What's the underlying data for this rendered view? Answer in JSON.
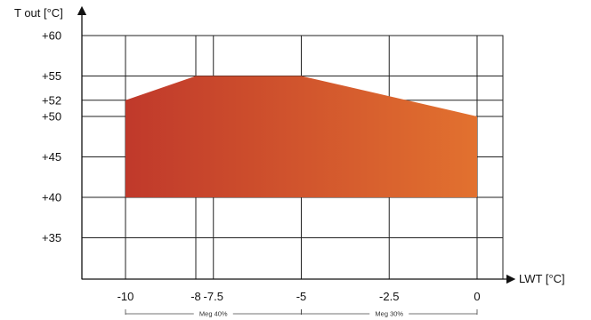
{
  "chart_data": {
    "type": "area",
    "title": "",
    "xlabel": "LWT [°C]",
    "ylabel": "T out [°C]",
    "xlim": [
      -10,
      0
    ],
    "ylim": [
      30,
      60
    ],
    "grid": true,
    "x_ticks": [
      -10,
      -8,
      -7.5,
      -5,
      -2.5,
      0
    ],
    "x_tick_labels": [
      "-10",
      "-8",
      "-7.5",
      "-5",
      "-2.5",
      "0"
    ],
    "y_ticks": [
      60,
      55,
      52,
      50,
      45,
      40,
      35
    ],
    "y_tick_labels": [
      "+60",
      "+55",
      "+52",
      "+50",
      "+45",
      "+40",
      "+35"
    ],
    "envelope": {
      "upper": [
        {
          "x": -10,
          "y": 52
        },
        {
          "x": -8,
          "y": 55
        },
        {
          "x": -5,
          "y": 55
        },
        {
          "x": 0,
          "y": 50
        }
      ],
      "lower": [
        {
          "x": -10,
          "y": 40
        },
        {
          "x": 0,
          "y": 40
        }
      ],
      "gradient_start": "#c0392b",
      "gradient_end": "#e2712f"
    },
    "ranges": [
      {
        "label": "Meg 40%",
        "x_start": -10,
        "x_end": -5
      },
      {
        "label": "Meg 30%",
        "x_start": -5,
        "x_end": 0
      }
    ]
  }
}
